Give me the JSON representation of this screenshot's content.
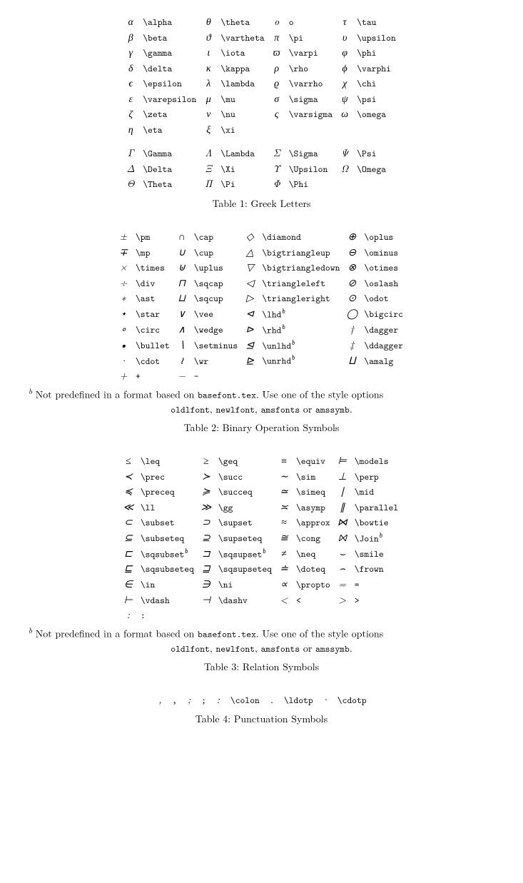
{
  "table1": {
    "caption": "Table 1: Greek Letters",
    "rows": [
      [
        {
          "g": "α",
          "c": "\\alpha"
        },
        {
          "g": "θ",
          "c": "\\theta"
        },
        {
          "g": "o",
          "c": "o"
        },
        {
          "g": "τ",
          "c": "\\tau"
        }
      ],
      [
        {
          "g": "β",
          "c": "\\beta"
        },
        {
          "g": "ϑ",
          "c": "\\vartheta"
        },
        {
          "g": "π",
          "c": "\\pi"
        },
        {
          "g": "υ",
          "c": "\\upsilon"
        }
      ],
      [
        {
          "g": "γ",
          "c": "\\gamma"
        },
        {
          "g": "ι",
          "c": "\\iota"
        },
        {
          "g": "ϖ",
          "c": "\\varpi"
        },
        {
          "g": "φ",
          "c": "\\phi"
        }
      ],
      [
        {
          "g": "δ",
          "c": "\\delta"
        },
        {
          "g": "κ",
          "c": "\\kappa"
        },
        {
          "g": "ρ",
          "c": "\\rho"
        },
        {
          "g": "ϕ",
          "c": "\\varphi"
        }
      ],
      [
        {
          "g": "ϵ",
          "c": "\\epsilon"
        },
        {
          "g": "λ",
          "c": "\\lambda"
        },
        {
          "g": "ϱ",
          "c": "\\varrho"
        },
        {
          "g": "χ",
          "c": "\\chi"
        }
      ],
      [
        {
          "g": "ε",
          "c": "\\varepsilon"
        },
        {
          "g": "μ",
          "c": "\\mu"
        },
        {
          "g": "σ",
          "c": "\\sigma"
        },
        {
          "g": "ψ",
          "c": "\\psi"
        }
      ],
      [
        {
          "g": "ζ",
          "c": "\\zeta"
        },
        {
          "g": "ν",
          "c": "\\nu"
        },
        {
          "g": "ς",
          "c": "\\varsigma"
        },
        {
          "g": "ω",
          "c": "\\omega"
        }
      ],
      [
        {
          "g": "η",
          "c": "\\eta"
        },
        {
          "g": "ξ",
          "c": "\\xi"
        },
        {
          "g": "",
          "c": ""
        },
        {
          "g": "",
          "c": ""
        }
      ]
    ],
    "rows2": [
      [
        {
          "g": "Γ",
          "c": "\\Gamma"
        },
        {
          "g": "Λ",
          "c": "\\Lambda"
        },
        {
          "g": "Σ",
          "c": "\\Sigma"
        },
        {
          "g": "Ψ",
          "c": "\\Psi"
        }
      ],
      [
        {
          "g": "Δ",
          "c": "\\Delta"
        },
        {
          "g": "Ξ",
          "c": "\\Xi"
        },
        {
          "g": "Υ",
          "c": "\\Upsilon"
        },
        {
          "g": "Ω",
          "c": "\\Omega"
        }
      ],
      [
        {
          "g": "Θ",
          "c": "\\Theta"
        },
        {
          "g": "Π",
          "c": "\\Pi"
        },
        {
          "g": "Φ",
          "c": "\\Phi"
        },
        {
          "g": "",
          "c": ""
        }
      ]
    ]
  },
  "table2": {
    "caption": "Table 2: Binary Operation Symbols",
    "rows": [
      [
        {
          "g": "±",
          "c": "\\pm"
        },
        {
          "g": "∩",
          "c": "\\cap"
        },
        {
          "g": "◇",
          "c": "\\diamond"
        },
        {
          "g": "⊕",
          "c": "\\oplus"
        }
      ],
      [
        {
          "g": "∓",
          "c": "\\mp"
        },
        {
          "g": "∪",
          "c": "\\cup"
        },
        {
          "g": "△",
          "c": "\\bigtriangleup"
        },
        {
          "g": "⊖",
          "c": "\\ominus"
        }
      ],
      [
        {
          "g": "×",
          "c": "\\times"
        },
        {
          "g": "⊎",
          "c": "\\uplus"
        },
        {
          "g": "▽",
          "c": "\\bigtriangledown"
        },
        {
          "g": "⊗",
          "c": "\\otimes"
        }
      ],
      [
        {
          "g": "÷",
          "c": "\\div"
        },
        {
          "g": "⊓",
          "c": "\\sqcap"
        },
        {
          "g": "◁",
          "c": "\\triangleleft"
        },
        {
          "g": "⊘",
          "c": "\\oslash"
        }
      ],
      [
        {
          "g": "∗",
          "c": "\\ast"
        },
        {
          "g": "⊔",
          "c": "\\sqcup"
        },
        {
          "g": "▷",
          "c": "\\triangleright"
        },
        {
          "g": "⊙",
          "c": "\\odot"
        }
      ],
      [
        {
          "g": "⋆",
          "c": "\\star"
        },
        {
          "g": "∨",
          "c": "\\vee"
        },
        {
          "g": "⊲",
          "c": "\\lhd",
          "sup": "b"
        },
        {
          "g": "◯",
          "c": "\\bigcirc"
        }
      ],
      [
        {
          "g": "∘",
          "c": "\\circ"
        },
        {
          "g": "∧",
          "c": "\\wedge"
        },
        {
          "g": "⊳",
          "c": "\\rhd",
          "sup": "b"
        },
        {
          "g": "†",
          "c": "\\dagger"
        }
      ],
      [
        {
          "g": "•",
          "c": "\\bullet"
        },
        {
          "g": "∖",
          "c": "\\setminus"
        },
        {
          "g": "⊴",
          "c": "\\unlhd",
          "sup": "b"
        },
        {
          "g": "‡",
          "c": "\\ddagger"
        }
      ],
      [
        {
          "g": "·",
          "c": "\\cdot"
        },
        {
          "g": "≀",
          "c": "\\wr"
        },
        {
          "g": "⊵",
          "c": "\\unrhd",
          "sup": "b"
        },
        {
          "g": "⨿",
          "c": "\\amalg"
        }
      ],
      [
        {
          "g": "+",
          "c": "+"
        },
        {
          "g": "−",
          "c": "-"
        },
        {
          "g": "",
          "c": ""
        },
        {
          "g": "",
          "c": ""
        }
      ]
    ],
    "footnote_sup": "b",
    "footnote1a": " Not predefined in a format based on ",
    "footnote1b": "basefont.tex",
    "footnote1c": ". Use one of the style options",
    "footnote2a": "oldlfont",
    "footnote2b": ", ",
    "footnote2c": "newlfont",
    "footnote2d": ", ",
    "footnote2e": "amsfonts",
    "footnote2f": " or ",
    "footnote2g": "amssymb",
    "footnote2h": "."
  },
  "table3": {
    "caption": "Table 3: Relation Symbols",
    "rows": [
      [
        {
          "g": "≤",
          "c": "\\leq"
        },
        {
          "g": "≥",
          "c": "\\geq"
        },
        {
          "g": "≡",
          "c": "\\equiv"
        },
        {
          "g": "⊨",
          "c": "\\models"
        }
      ],
      [
        {
          "g": "≺",
          "c": "\\prec"
        },
        {
          "g": "≻",
          "c": "\\succ"
        },
        {
          "g": "∼",
          "c": "\\sim"
        },
        {
          "g": "⊥",
          "c": "\\perp"
        }
      ],
      [
        {
          "g": "≼",
          "c": "\\preceq"
        },
        {
          "g": "≽",
          "c": "\\succeq"
        },
        {
          "g": "≃",
          "c": "\\simeq"
        },
        {
          "g": "∣",
          "c": "\\mid"
        }
      ],
      [
        {
          "g": "≪",
          "c": "\\ll"
        },
        {
          "g": "≫",
          "c": "\\gg"
        },
        {
          "g": "≍",
          "c": "\\asymp"
        },
        {
          "g": "∥",
          "c": "\\parallel"
        }
      ],
      [
        {
          "g": "⊂",
          "c": "\\subset"
        },
        {
          "g": "⊃",
          "c": "\\supset"
        },
        {
          "g": "≈",
          "c": "\\approx"
        },
        {
          "g": "⋈",
          "c": "\\bowtie"
        }
      ],
      [
        {
          "g": "⊆",
          "c": "\\subseteq"
        },
        {
          "g": "⊇",
          "c": "\\supseteq"
        },
        {
          "g": "≅",
          "c": "\\cong"
        },
        {
          "g": "⨝",
          "c": "\\Join",
          "sup": "b"
        }
      ],
      [
        {
          "g": "⊏",
          "c": "\\sqsubset",
          "sup": "b"
        },
        {
          "g": "⊐",
          "c": "\\sqsupset",
          "sup": "b"
        },
        {
          "g": "≠",
          "c": "\\neq"
        },
        {
          "g": "⌣",
          "c": "\\smile"
        }
      ],
      [
        {
          "g": "⊑",
          "c": "\\sqsubseteq"
        },
        {
          "g": "⊒",
          "c": "\\sqsupseteq"
        },
        {
          "g": "≐",
          "c": "\\doteq"
        },
        {
          "g": "⌢",
          "c": "\\frown"
        }
      ],
      [
        {
          "g": "∈",
          "c": "\\in"
        },
        {
          "g": "∋",
          "c": "\\ni"
        },
        {
          "g": "∝",
          "c": "\\propto"
        },
        {
          "g": "=",
          "c": "="
        }
      ],
      [
        {
          "g": "⊢",
          "c": "\\vdash"
        },
        {
          "g": "⊣",
          "c": "\\dashv"
        },
        {
          "g": "<",
          "c": "<"
        },
        {
          "g": ">",
          "c": ">"
        }
      ],
      [
        {
          "g": ":",
          "c": ":"
        },
        {
          "g": "",
          "c": ""
        },
        {
          "g": "",
          "c": ""
        },
        {
          "g": "",
          "c": ""
        }
      ]
    ],
    "footnote_sup": "b",
    "footnote1a": " Not predefined in a format based on ",
    "footnote1b": "basefont.tex",
    "footnote1c": ". Use one of the style options",
    "footnote2a": "oldlfont",
    "footnote2b": ", ",
    "footnote2c": "newlfont",
    "footnote2d": ", ",
    "footnote2e": "amsfonts",
    "footnote2f": " or ",
    "footnote2g": "amssymb",
    "footnote2h": "."
  },
  "table4": {
    "caption": "Table 4: Punctuation Symbols",
    "rows": [
      [
        {
          "g": ",",
          "c": ","
        },
        {
          "g": ";",
          "c": ";"
        },
        {
          "g": ":",
          "c": "\\colon"
        },
        {
          "g": ".",
          "c": "\\ldotp"
        },
        {
          "g": "·",
          "c": "\\cdotp"
        }
      ]
    ]
  }
}
